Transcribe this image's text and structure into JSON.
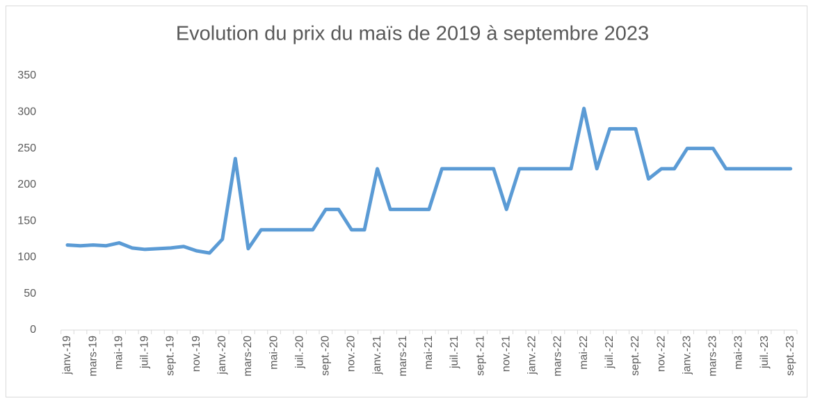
{
  "chart_data": {
    "type": "line",
    "title": "Evolution du prix du maïs de 2019 à  septembre 2023",
    "categories": [
      "janv.-19",
      null,
      "mars-19",
      null,
      "mai-19",
      null,
      "juil.-19",
      null,
      "sept.-19",
      null,
      "nov.-19",
      null,
      "janv.-20",
      null,
      "mars-20",
      null,
      "mai-20",
      null,
      "juil.-20",
      null,
      "sept.-20",
      null,
      "nov.-20",
      null,
      "janv.-21",
      null,
      "mars-21",
      null,
      "mai-21",
      null,
      "juil.-21",
      null,
      "sept.-21",
      null,
      "nov.-21",
      null,
      "janv.-22",
      null,
      "mars-22",
      null,
      "mai-22",
      null,
      "juil.-22",
      null,
      "sept.-22",
      null,
      "nov.-22",
      null,
      "janv.-23",
      null,
      "mars-23",
      null,
      "mai-23",
      null,
      "juil.-23",
      null,
      "sept.-23"
    ],
    "values": [
      117,
      116,
      117,
      116,
      120,
      113,
      111,
      112,
      113,
      115,
      109,
      106,
      125,
      236,
      112,
      138,
      138,
      138,
      138,
      138,
      166,
      166,
      138,
      138,
      222,
      166,
      166,
      166,
      166,
      222,
      222,
      222,
      222,
      222,
      166,
      222,
      222,
      222,
      222,
      222,
      305,
      222,
      277,
      277,
      277,
      208,
      222,
      222,
      250,
      250,
      250,
      222,
      222,
      222,
      222,
      222,
      222
    ],
    "color": "#5b9bd5",
    "ylim": [
      0,
      350
    ],
    "yticks": [
      0,
      50,
      100,
      150,
      200,
      250,
      300,
      350
    ],
    "grid": false
  }
}
